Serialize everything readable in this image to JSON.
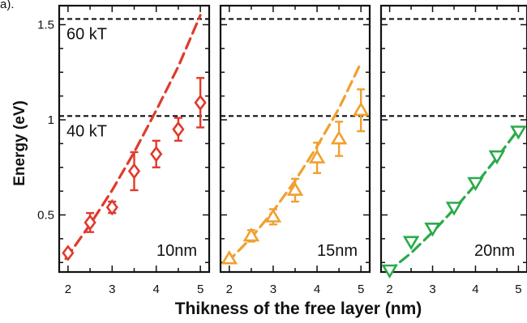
{
  "top_fragment": "a).",
  "chart_data": {
    "type": "scatter",
    "ylabel": "Energy (eV)",
    "xlabel": "Thikness of the free layer (nm)",
    "shared_y_ticks": [
      "0.5",
      "1",
      "1.5"
    ],
    "ylim": [
      0.2,
      1.6
    ],
    "xlim": [
      1.8,
      5.2
    ],
    "x_ticks": [
      2,
      3,
      4,
      5
    ],
    "x_tick_labels": [
      "2",
      "3",
      "4",
      "5"
    ],
    "reference_lines": [
      {
        "value": 1.53,
        "label": "60 kT"
      },
      {
        "value": 1.02,
        "label": "40 kT"
      }
    ],
    "panels": [
      {
        "label": "10nm",
        "color": "#e03a2c",
        "marker": "diamond",
        "show_ref_labels": true,
        "points": [
          {
            "x": 2.0,
            "y": 0.3,
            "err": 0.0
          },
          {
            "x": 2.5,
            "y": 0.46,
            "err": 0.05
          },
          {
            "x": 3.0,
            "y": 0.54,
            "err": 0.03
          },
          {
            "x": 3.5,
            "y": 0.73,
            "err": 0.1
          },
          {
            "x": 4.0,
            "y": 0.82,
            "err": 0.07
          },
          {
            "x": 4.5,
            "y": 0.95,
            "err": 0.06
          },
          {
            "x": 5.0,
            "y": 1.09,
            "err": 0.13
          }
        ],
        "fit": [
          [
            1.95,
            0.27
          ],
          [
            2.5,
            0.45
          ],
          [
            3.0,
            0.63
          ],
          [
            3.5,
            0.83
          ],
          [
            4.0,
            1.05
          ],
          [
            4.5,
            1.28
          ],
          [
            5.0,
            1.55
          ]
        ]
      },
      {
        "label": "15nm",
        "color": "#f0a030",
        "marker": "triangle-up",
        "show_ref_labels": false,
        "points": [
          {
            "x": 2.0,
            "y": 0.27,
            "err": 0.0
          },
          {
            "x": 2.5,
            "y": 0.39,
            "err": 0.03
          },
          {
            "x": 3.0,
            "y": 0.49,
            "err": 0.04
          },
          {
            "x": 3.5,
            "y": 0.63,
            "err": 0.06
          },
          {
            "x": 4.0,
            "y": 0.8,
            "err": 0.08
          },
          {
            "x": 4.5,
            "y": 0.9,
            "err": 0.09
          },
          {
            "x": 5.0,
            "y": 1.05,
            "err": 0.11
          }
        ],
        "fit": [
          [
            1.95,
            0.25
          ],
          [
            2.5,
            0.38
          ],
          [
            3.0,
            0.52
          ],
          [
            3.5,
            0.68
          ],
          [
            4.0,
            0.86
          ],
          [
            4.5,
            1.06
          ],
          [
            5.0,
            1.3
          ]
        ]
      },
      {
        "label": "20nm",
        "color": "#2aaa4a",
        "marker": "triangle-down",
        "show_ref_labels": false,
        "points": [
          {
            "x": 2.0,
            "y": 0.21,
            "err": 0.0
          },
          {
            "x": 2.5,
            "y": 0.36,
            "err": 0.0
          },
          {
            "x": 3.0,
            "y": 0.43,
            "err": 0.0
          },
          {
            "x": 3.5,
            "y": 0.54,
            "err": 0.0
          },
          {
            "x": 4.0,
            "y": 0.67,
            "err": 0.0
          },
          {
            "x": 4.5,
            "y": 0.81,
            "err": 0.0
          },
          {
            "x": 5.0,
            "y": 0.94,
            "err": 0.0
          }
        ],
        "fit": [
          [
            1.95,
            0.2
          ],
          [
            2.5,
            0.3
          ],
          [
            3.0,
            0.41
          ],
          [
            3.5,
            0.53
          ],
          [
            4.0,
            0.66
          ],
          [
            4.5,
            0.8
          ],
          [
            5.0,
            0.95
          ]
        ]
      }
    ]
  }
}
